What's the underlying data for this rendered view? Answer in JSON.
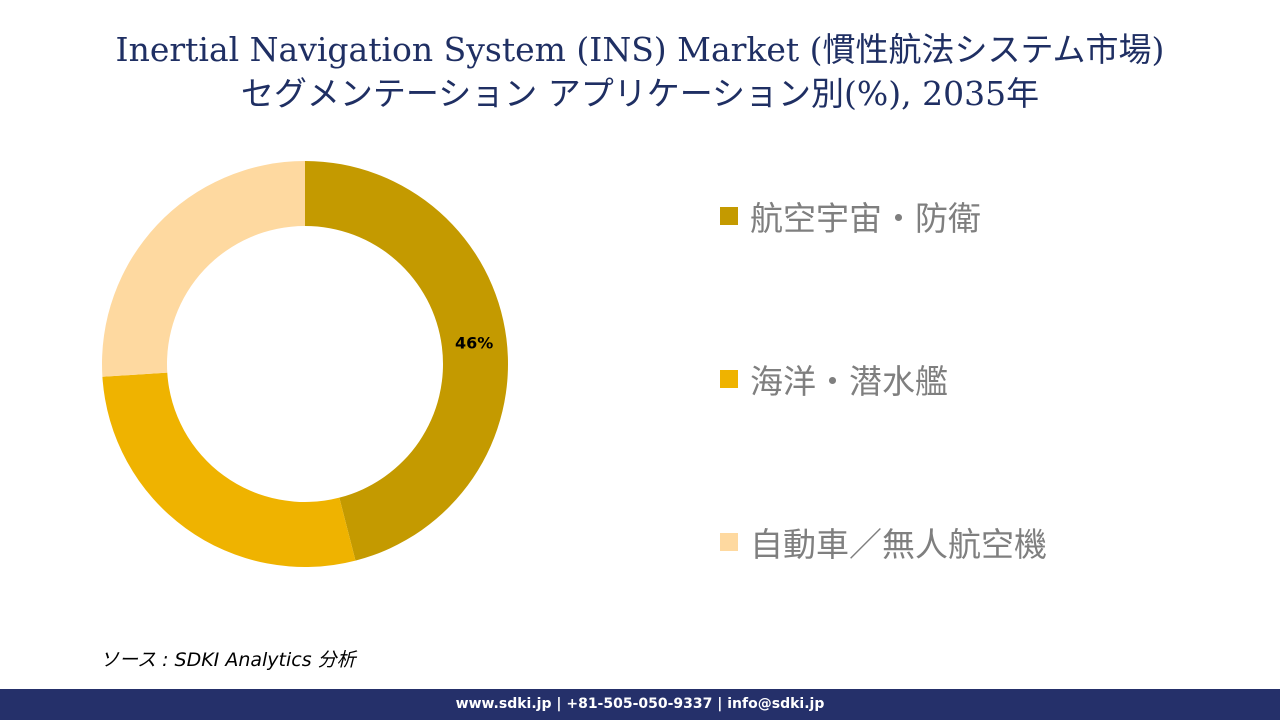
{
  "title": {
    "line1": "Inertial Navigation System (INS) Market (慣性航法システム市場)",
    "line2": "セグメンテーション アプリケーション別(%), 2035年"
  },
  "chart_data": {
    "type": "donut",
    "title": "Inertial Navigation System (INS) Market (慣性航法システム市場) セグメンテーション アプリケーション別(%), 2035年",
    "slices": [
      {
        "label": "航空宇宙・防衛",
        "value": 46,
        "color": "#c49a00",
        "data_label": "46%"
      },
      {
        "label": "海洋・潜水艦",
        "value": 28,
        "color": "#efb300",
        "data_label": ""
      },
      {
        "label": "自動車／無人航空機",
        "value": 26,
        "color": "#fed9a0",
        "data_label": ""
      }
    ],
    "legend_position": "right"
  },
  "source": "ソース : SDKI Analytics 分析",
  "footer": "www.sdki.jp | +81-505-050-9337 | info@sdki.jp"
}
